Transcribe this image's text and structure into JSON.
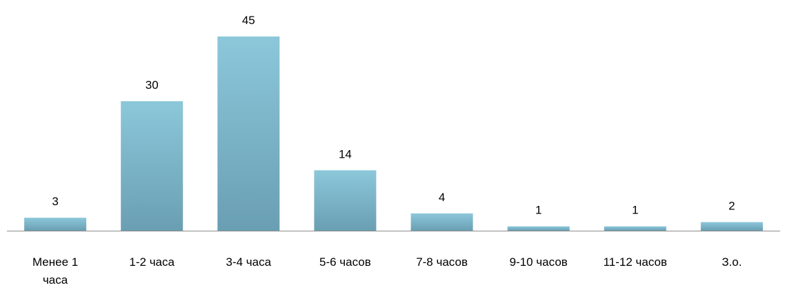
{
  "chart_data": {
    "type": "bar",
    "title": "",
    "xlabel": "",
    "ylabel": "",
    "categories": [
      [
        "Менее 1",
        "часа"
      ],
      [
        "1-2 часа"
      ],
      [
        "3-4 часа"
      ],
      [
        "5-6 часов"
      ],
      [
        "7-8 часов"
      ],
      [
        "9-10 часов"
      ],
      [
        "11-12 часов"
      ],
      [
        "З.о."
      ]
    ],
    "values": [
      3,
      30,
      45,
      14,
      4,
      1,
      1,
      2
    ],
    "data_labels": [
      "3",
      "30",
      "45",
      "14",
      "4",
      "1",
      "1",
      "2"
    ],
    "ylim": [
      0,
      45
    ],
    "grid": false,
    "legend": "none",
    "colors": {
      "bar_top": "#8cc7da",
      "bar_bottom": "#6a9fb3",
      "axis": "#8c8c8c",
      "text": "#000000"
    }
  }
}
